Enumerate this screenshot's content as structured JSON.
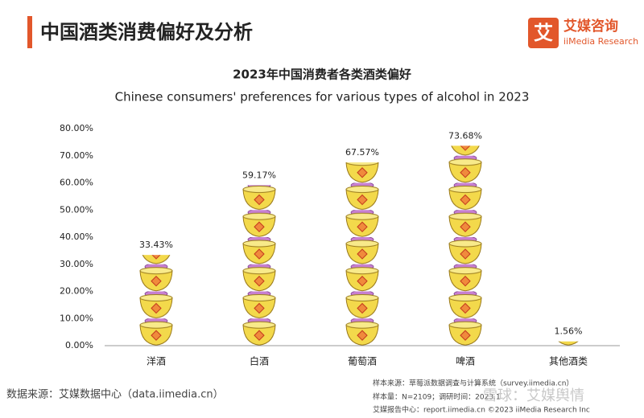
{
  "header": {
    "title": "中国酒类消费偏好及分析",
    "logo": "艾媒咨询",
    "logo_sub": "iiMedia Research"
  },
  "chart_data": {
    "type": "pictograph",
    "title": "2023年中国消费者各类酒类偏好",
    "subtitle": "Chinese consumers' preferences for various types of alcohol in 2023",
    "categories": [
      "洋酒",
      "白酒",
      "葡萄酒",
      "啤酒",
      "其他酒类"
    ],
    "values": [
      33.43,
      59.17,
      67.57,
      73.68,
      1.56
    ],
    "value_labels": [
      "33.43%",
      "59.17%",
      "67.57%",
      "73.68%",
      "1.56%"
    ],
    "color": "#f3d94b",
    "ylim": [
      0,
      80
    ],
    "yticks": [
      {
        "value": 0,
        "label": "0.00%"
      },
      {
        "value": 10,
        "label": "10.00%"
      },
      {
        "value": 20,
        "label": "20.00%"
      },
      {
        "value": 30,
        "label": "30.00%"
      },
      {
        "value": 40,
        "label": "40.00%"
      },
      {
        "value": 50,
        "label": "50.00%"
      },
      {
        "value": 60,
        "label": "60.00%"
      },
      {
        "value": 70,
        "label": "70.00%"
      },
      {
        "value": 80,
        "label": "80.00%"
      }
    ]
  },
  "footer": {
    "source": "数据来源：艾媒数据中心（data.iimedia.cn）",
    "notes": [
      "样本来源：草莓派数据调查与计算系统（survey.iimedia.cn）",
      "样本量：N=2109；调研时间：2023.1",
      "艾媒报告中心：report.iimedia.cn  ©2023  iiMedia Research  Inc"
    ],
    "watermark": "雪球：艾媒舆情"
  }
}
